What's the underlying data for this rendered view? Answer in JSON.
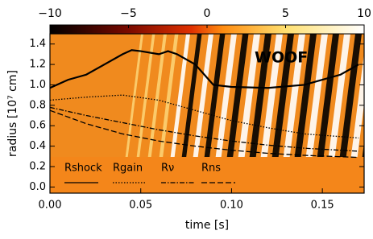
{
  "chart_data": {
    "type": "line",
    "xlabel": "time [s]",
    "ylabel": "radius [10⁷ cm]",
    "annotation": "WOOF",
    "xlim": [
      0,
      0.173
    ],
    "ylim": [
      -0.06,
      1.5
    ],
    "xticks": [
      {
        "value": 0,
        "label": "0.00"
      },
      {
        "value": 0.05,
        "label": "0.05"
      },
      {
        "value": 0.1,
        "label": "0.10"
      },
      {
        "value": 0.15,
        "label": "0.15"
      }
    ],
    "yticks": [
      {
        "value": 0,
        "label": "0.0"
      },
      0.2,
      0.4,
      0.6,
      0.8,
      {
        "value": 1,
        "label": "1.0"
      },
      1.2,
      1.4
    ],
    "clim": [
      -10,
      10
    ],
    "cticks": [
      {
        "value": -10,
        "label": "−10"
      },
      {
        "value": -5,
        "label": "−5"
      },
      0,
      5,
      10
    ],
    "series": [
      {
        "name": "Rshock",
        "color": "#000000",
        "dash": "none",
        "width": 2.2,
        "x": [
          0,
          0.01,
          0.02,
          0.03,
          0.04,
          0.045,
          0.05,
          0.06,
          0.065,
          0.07,
          0.08,
          0.09,
          0.1,
          0.12,
          0.14,
          0.15,
          0.16,
          0.17
        ],
        "y": [
          0.97,
          1.05,
          1.1,
          1.2,
          1.3,
          1.34,
          1.33,
          1.3,
          1.33,
          1.3,
          1.2,
          1.0,
          0.98,
          0.97,
          1.0,
          1.05,
          1.1,
          1.2
        ]
      },
      {
        "name": "Rgain",
        "color": "#000000",
        "dash": "1.5 2",
        "width": 1.3,
        "x": [
          0,
          0.02,
          0.04,
          0.06,
          0.08,
          0.1,
          0.12,
          0.14,
          0.17
        ],
        "y": [
          0.85,
          0.88,
          0.9,
          0.85,
          0.75,
          0.65,
          0.58,
          0.52,
          0.48
        ]
      },
      {
        "name": "Rν",
        "color": "#000000",
        "dash": "6 2 1.5 2",
        "width": 1.3,
        "x": [
          0,
          0.02,
          0.04,
          0.06,
          0.08,
          0.1,
          0.12,
          0.14,
          0.17
        ],
        "y": [
          0.78,
          0.7,
          0.63,
          0.56,
          0.5,
          0.45,
          0.41,
          0.38,
          0.35
        ]
      },
      {
        "name": "Rns",
        "color": "#000000",
        "dash": "7 3",
        "width": 1.3,
        "x": [
          0,
          0.02,
          0.04,
          0.06,
          0.08,
          0.1,
          0.12,
          0.14,
          0.17
        ],
        "y": [
          0.75,
          0.62,
          0.52,
          0.45,
          0.4,
          0.36,
          0.33,
          0.31,
          0.29
        ]
      }
    ]
  }
}
